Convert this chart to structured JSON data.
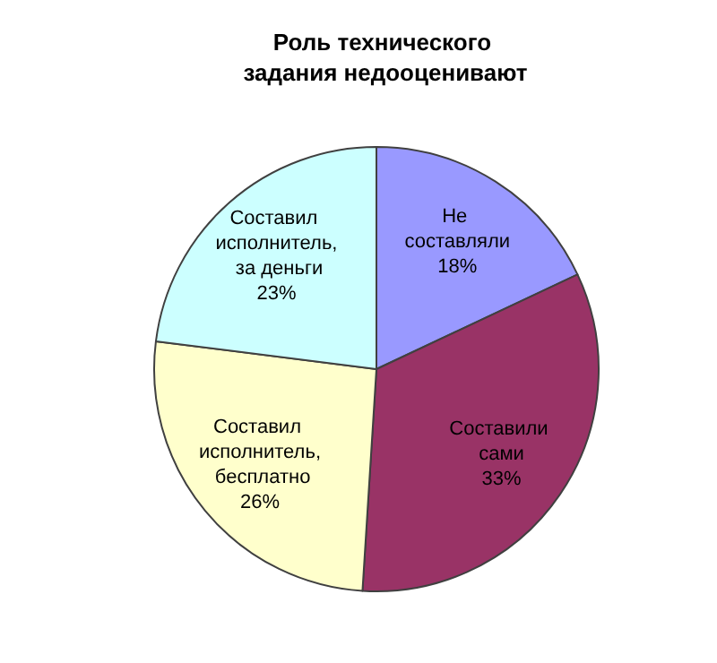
{
  "chart_data": {
    "type": "pie",
    "title": "Роль технического задания недооценивают",
    "categories": [
      "Не составляли",
      "Составили сами",
      "Составил исполнитель, бесплатно",
      "Составил исполнитель, за деньги"
    ],
    "values": [
      18,
      33,
      26,
      23
    ],
    "colors": [
      "#9999ff",
      "#993366",
      "#ffffcc",
      "#ccffff"
    ],
    "value_labels": [
      "18%",
      "33%",
      "26%",
      "23%"
    ],
    "legend": false
  }
}
